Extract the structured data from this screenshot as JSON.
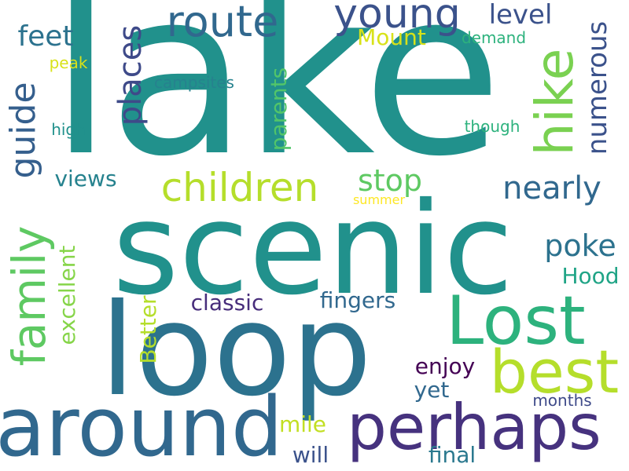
{
  "words": {
    "lake": {
      "text": "lake",
      "color": "#21918c"
    },
    "scenic": {
      "text": "scenic",
      "color": "#21918c"
    },
    "loop": {
      "text": "loop",
      "color": "#2c728e"
    },
    "around": {
      "text": "around",
      "color": "#31688e"
    },
    "perhaps": {
      "text": "perhaps",
      "color": "#46327e"
    },
    "lost": {
      "text": "Lost",
      "color": "#2db27d"
    },
    "best": {
      "text": "best",
      "color": "#b5de2b"
    },
    "family": {
      "text": "family",
      "color": "#5ec962"
    },
    "hike": {
      "text": "hike",
      "color": "#7ad151"
    },
    "route": {
      "text": "route",
      "color": "#31688e"
    },
    "young": {
      "text": "young",
      "color": "#3b528b"
    },
    "children": {
      "text": "children",
      "color": "#b5de2b"
    },
    "guide": {
      "text": "guide",
      "color": "#355f8d"
    },
    "places": {
      "text": "places",
      "color": "#3e4a89"
    },
    "numerous": {
      "text": "numerous",
      "color": "#3b528b"
    },
    "nearly": {
      "text": "nearly",
      "color": "#31688e"
    },
    "stop": {
      "text": "stop",
      "color": "#5ec962"
    },
    "feet": {
      "text": "feet",
      "color": "#2c728e"
    },
    "level": {
      "text": "level",
      "color": "#3b528b"
    },
    "mount": {
      "text": "Mount",
      "color": "#d8e219"
    },
    "poke": {
      "text": "poke",
      "color": "#2c728e"
    },
    "parents": {
      "text": "parents",
      "color": "#52c569"
    },
    "excellent": {
      "text": "excellent",
      "color": "#86d549"
    },
    "fingers": {
      "text": "fingers",
      "color": "#31688e"
    },
    "classic": {
      "text": "classic",
      "color": "#472d7b"
    },
    "better": {
      "text": "Better",
      "color": "#b5de2b"
    },
    "hood": {
      "text": "Hood",
      "color": "#20a486"
    },
    "views": {
      "text": "views",
      "color": "#26828e"
    },
    "enjoy": {
      "text": "enjoy",
      "color": "#440154"
    },
    "yet": {
      "text": "yet",
      "color": "#31688e"
    },
    "mile": {
      "text": "mile",
      "color": "#c2df23"
    },
    "will": {
      "text": "will",
      "color": "#3b528b"
    },
    "final": {
      "text": "final",
      "color": "#2a788e"
    },
    "months": {
      "text": "months",
      "color": "#3e4a89"
    },
    "campsites": {
      "text": "campsites",
      "color": "#26828e"
    },
    "demand": {
      "text": "demand",
      "color": "#2db27d"
    },
    "peak": {
      "text": "peak",
      "color": "#d8e219"
    },
    "high": {
      "text": "high",
      "color": "#21918c"
    },
    "though": {
      "text": "though",
      "color": "#2db27d"
    },
    "summer": {
      "text": "summer",
      "color": "#fde725"
    }
  }
}
